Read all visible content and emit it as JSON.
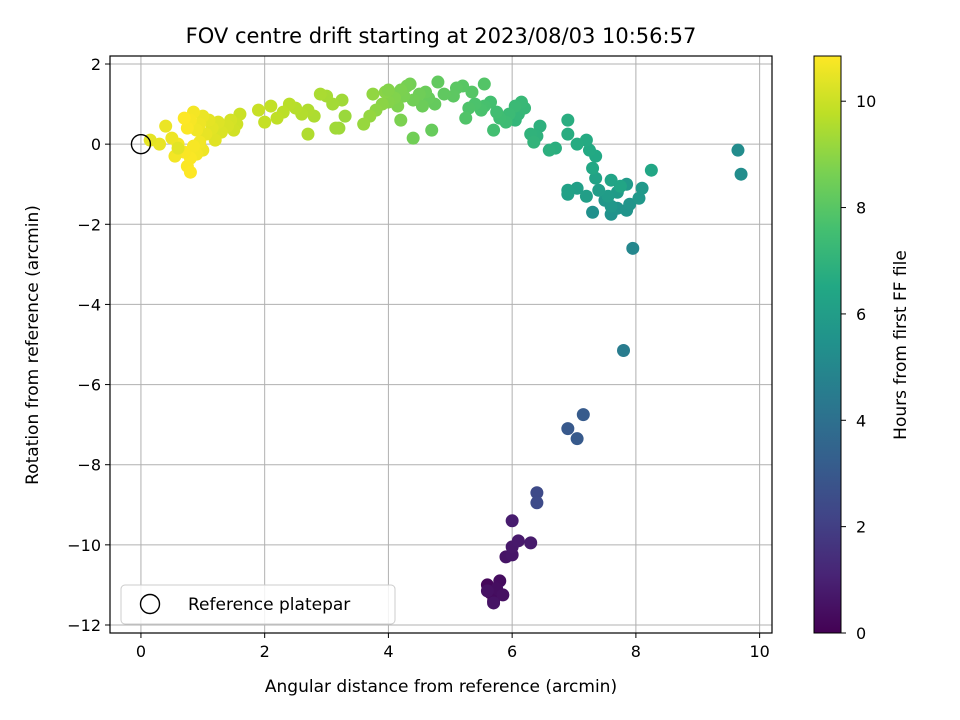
{
  "chart_data": {
    "type": "scatter",
    "title": "FOV centre drift starting at 2023/08/03 10:56:57",
    "xlabel": "Angular distance from reference (arcmin)",
    "ylabel": "Rotation from reference (arcmin)",
    "xlim": [
      -0.5,
      10.2
    ],
    "ylim": [
      -12.2,
      2.2
    ],
    "xticks": [
      0,
      2,
      4,
      6,
      8,
      10
    ],
    "yticks": [
      2,
      0,
      -2,
      -4,
      -6,
      -8,
      -10,
      -12
    ],
    "grid": true,
    "colorbar": {
      "label": "Hours from first FF file",
      "range": [
        0,
        10.85
      ],
      "ticks": [
        0,
        2,
        4,
        6,
        8,
        10
      ],
      "colormap": "viridis"
    },
    "legend": {
      "position": "lower-left",
      "entries": [
        "Reference platepar"
      ]
    },
    "reference_point": {
      "x": 0,
      "y": 0
    },
    "series": [
      {
        "points": [
          {
            "x": 5.6,
            "y": -11.0,
            "h": 0.2
          },
          {
            "x": 5.65,
            "y": -11.2,
            "h": 0.25
          },
          {
            "x": 5.7,
            "y": -11.4,
            "h": 0.3
          },
          {
            "x": 5.8,
            "y": -10.9,
            "h": 0.35
          },
          {
            "x": 5.75,
            "y": -11.1,
            "h": 0.4
          },
          {
            "x": 5.85,
            "y": -11.25,
            "h": 0.45
          },
          {
            "x": 5.6,
            "y": -11.15,
            "h": 0.5
          },
          {
            "x": 5.7,
            "y": -11.45,
            "h": 0.55
          },
          {
            "x": 5.9,
            "y": -10.3,
            "h": 0.6
          },
          {
            "x": 6.0,
            "y": -10.25,
            "h": 0.65
          },
          {
            "x": 6.0,
            "y": -10.05,
            "h": 0.7
          },
          {
            "x": 6.1,
            "y": -9.9,
            "h": 0.75
          },
          {
            "x": 6.3,
            "y": -9.95,
            "h": 0.8
          },
          {
            "x": 6.0,
            "y": -9.4,
            "h": 0.85
          },
          {
            "x": 6.4,
            "y": -8.7,
            "h": 2.4
          },
          {
            "x": 6.4,
            "y": -8.95,
            "h": 2.45
          },
          {
            "x": 6.9,
            "y": -7.1,
            "h": 3.0
          },
          {
            "x": 7.05,
            "y": -7.35,
            "h": 3.05
          },
          {
            "x": 7.15,
            "y": -6.75,
            "h": 3.1
          },
          {
            "x": 7.8,
            "y": -5.15,
            "h": 4.5
          },
          {
            "x": 7.95,
            "y": -2.6,
            "h": 5.0
          },
          {
            "x": 9.65,
            "y": -0.15,
            "h": 5.2
          },
          {
            "x": 9.7,
            "y": -0.75,
            "h": 5.25
          },
          {
            "x": 7.3,
            "y": -1.7,
            "h": 5.4
          },
          {
            "x": 7.6,
            "y": -1.75,
            "h": 5.45
          },
          {
            "x": 7.7,
            "y": -1.6,
            "h": 5.5
          },
          {
            "x": 7.85,
            "y": -1.65,
            "h": 5.55
          },
          {
            "x": 7.9,
            "y": -1.5,
            "h": 5.6
          },
          {
            "x": 7.5,
            "y": -1.4,
            "h": 5.65
          },
          {
            "x": 7.6,
            "y": -1.55,
            "h": 5.7
          },
          {
            "x": 8.05,
            "y": -1.35,
            "h": 5.75
          },
          {
            "x": 8.1,
            "y": -1.1,
            "h": 5.8
          },
          {
            "x": 7.85,
            "y": -1.0,
            "h": 5.85
          },
          {
            "x": 7.7,
            "y": -1.2,
            "h": 5.9
          },
          {
            "x": 7.55,
            "y": -1.3,
            "h": 5.95
          },
          {
            "x": 7.4,
            "y": -1.15,
            "h": 6.0
          },
          {
            "x": 7.2,
            "y": -1.3,
            "h": 6.05
          },
          {
            "x": 7.05,
            "y": -1.1,
            "h": 6.1
          },
          {
            "x": 6.9,
            "y": -1.25,
            "h": 6.15
          },
          {
            "x": 6.9,
            "y": -1.15,
            "h": 6.2
          },
          {
            "x": 7.35,
            "y": -0.85,
            "h": 6.25
          },
          {
            "x": 7.6,
            "y": -0.9,
            "h": 6.3
          },
          {
            "x": 7.75,
            "y": -1.05,
            "h": 6.35
          },
          {
            "x": 8.25,
            "y": -0.65,
            "h": 6.4
          },
          {
            "x": 7.3,
            "y": -0.6,
            "h": 6.45
          },
          {
            "x": 7.35,
            "y": -0.3,
            "h": 6.5
          },
          {
            "x": 7.25,
            "y": -0.15,
            "h": 6.55
          },
          {
            "x": 7.2,
            "y": 0.1,
            "h": 6.6
          },
          {
            "x": 7.05,
            "y": 0.0,
            "h": 6.65
          },
          {
            "x": 6.9,
            "y": 0.25,
            "h": 6.7
          },
          {
            "x": 6.9,
            "y": 0.6,
            "h": 6.75
          },
          {
            "x": 6.7,
            "y": -0.1,
            "h": 6.8
          },
          {
            "x": 6.6,
            "y": -0.15,
            "h": 6.85
          },
          {
            "x": 6.45,
            "y": 0.45,
            "h": 6.9
          },
          {
            "x": 6.4,
            "y": 0.2,
            "h": 6.95
          },
          {
            "x": 6.3,
            "y": 0.25,
            "h": 7.0
          },
          {
            "x": 6.35,
            "y": 0.05,
            "h": 7.05
          },
          {
            "x": 6.05,
            "y": 0.6,
            "h": 7.1
          },
          {
            "x": 6.1,
            "y": 0.75,
            "h": 7.15
          },
          {
            "x": 6.2,
            "y": 0.9,
            "h": 7.2
          },
          {
            "x": 6.15,
            "y": 1.05,
            "h": 7.25
          },
          {
            "x": 6.05,
            "y": 0.95,
            "h": 7.3
          },
          {
            "x": 5.95,
            "y": 0.75,
            "h": 7.35
          },
          {
            "x": 5.9,
            "y": 0.55,
            "h": 7.4
          },
          {
            "x": 5.8,
            "y": 0.65,
            "h": 7.45
          },
          {
            "x": 5.75,
            "y": 0.8,
            "h": 7.5
          },
          {
            "x": 5.7,
            "y": 0.35,
            "h": 7.55
          },
          {
            "x": 5.65,
            "y": 1.05,
            "h": 7.6
          },
          {
            "x": 5.55,
            "y": 0.95,
            "h": 7.65
          },
          {
            "x": 5.5,
            "y": 0.85,
            "h": 7.7
          },
          {
            "x": 5.4,
            "y": 1.0,
            "h": 7.75
          },
          {
            "x": 5.3,
            "y": 0.9,
            "h": 7.8
          },
          {
            "x": 5.25,
            "y": 0.65,
            "h": 7.85
          },
          {
            "x": 5.55,
            "y": 1.5,
            "h": 7.9
          },
          {
            "x": 5.35,
            "y": 1.3,
            "h": 7.95
          },
          {
            "x": 5.2,
            "y": 1.45,
            "h": 8.0
          },
          {
            "x": 5.1,
            "y": 1.4,
            "h": 8.05
          },
          {
            "x": 5.05,
            "y": 1.2,
            "h": 8.1
          },
          {
            "x": 4.9,
            "y": 1.25,
            "h": 8.15
          },
          {
            "x": 4.8,
            "y": 1.55,
            "h": 8.2
          },
          {
            "x": 4.75,
            "y": 1.0,
            "h": 8.25
          },
          {
            "x": 4.65,
            "y": 1.15,
            "h": 8.3
          },
          {
            "x": 4.6,
            "y": 1.3,
            "h": 8.35
          },
          {
            "x": 4.55,
            "y": 0.95,
            "h": 8.4
          },
          {
            "x": 4.5,
            "y": 1.25,
            "h": 8.45
          },
          {
            "x": 4.4,
            "y": 1.1,
            "h": 8.5
          },
          {
            "x": 4.35,
            "y": 1.5,
            "h": 8.55
          },
          {
            "x": 4.3,
            "y": 1.45,
            "h": 8.6
          },
          {
            "x": 4.25,
            "y": 1.2,
            "h": 8.65
          },
          {
            "x": 4.2,
            "y": 1.35,
            "h": 8.7
          },
          {
            "x": 4.15,
            "y": 0.95,
            "h": 8.75
          },
          {
            "x": 4.1,
            "y": 1.15,
            "h": 8.8
          },
          {
            "x": 4.0,
            "y": 1.05,
            "h": 8.85
          },
          {
            "x": 3.95,
            "y": 1.3,
            "h": 8.9
          },
          {
            "x": 3.9,
            "y": 1.0,
            "h": 8.95
          },
          {
            "x": 3.8,
            "y": 0.85,
            "h": 9.0
          },
          {
            "x": 3.75,
            "y": 1.25,
            "h": 9.05
          },
          {
            "x": 3.7,
            "y": 0.7,
            "h": 9.1
          },
          {
            "x": 4.2,
            "y": 0.6,
            "h": 8.7
          },
          {
            "x": 4.7,
            "y": 0.35,
            "h": 8.3
          },
          {
            "x": 4.4,
            "y": 0.15,
            "h": 8.5
          },
          {
            "x": 4.0,
            "y": 1.35,
            "h": 8.85
          },
          {
            "x": 3.6,
            "y": 0.5,
            "h": 9.15
          },
          {
            "x": 3.3,
            "y": 0.7,
            "h": 9.2
          },
          {
            "x": 3.2,
            "y": 0.4,
            "h": 9.25
          },
          {
            "x": 3.25,
            "y": 1.1,
            "h": 9.3
          },
          {
            "x": 3.1,
            "y": 1.0,
            "h": 9.35
          },
          {
            "x": 3.0,
            "y": 1.2,
            "h": 9.4
          },
          {
            "x": 2.9,
            "y": 1.25,
            "h": 9.45
          },
          {
            "x": 2.8,
            "y": 0.7,
            "h": 9.5
          },
          {
            "x": 2.7,
            "y": 0.85,
            "h": 9.55
          },
          {
            "x": 2.6,
            "y": 0.75,
            "h": 9.6
          },
          {
            "x": 2.5,
            "y": 0.9,
            "h": 9.65
          },
          {
            "x": 2.4,
            "y": 1.0,
            "h": 9.7
          },
          {
            "x": 2.3,
            "y": 0.8,
            "h": 9.75
          },
          {
            "x": 2.2,
            "y": 0.65,
            "h": 9.8
          },
          {
            "x": 2.1,
            "y": 0.95,
            "h": 9.85
          },
          {
            "x": 2.0,
            "y": 0.55,
            "h": 9.9
          },
          {
            "x": 1.9,
            "y": 0.85,
            "h": 9.95
          },
          {
            "x": 2.7,
            "y": 0.25,
            "h": 9.55
          },
          {
            "x": 3.15,
            "y": 0.4,
            "h": 9.3
          },
          {
            "x": 1.6,
            "y": 0.75,
            "h": 10.0
          },
          {
            "x": 1.55,
            "y": 0.5,
            "h": 10.05
          },
          {
            "x": 1.5,
            "y": 0.35,
            "h": 10.1
          },
          {
            "x": 1.45,
            "y": 0.6,
            "h": 10.15
          },
          {
            "x": 1.4,
            "y": 0.45,
            "h": 10.2
          },
          {
            "x": 1.3,
            "y": 0.3,
            "h": 10.25
          },
          {
            "x": 1.25,
            "y": 0.55,
            "h": 10.3
          },
          {
            "x": 1.2,
            "y": 0.1,
            "h": 10.35
          },
          {
            "x": 1.15,
            "y": 0.4,
            "h": 10.4
          },
          {
            "x": 1.1,
            "y": 0.6,
            "h": 10.45
          },
          {
            "x": 1.05,
            "y": 0.25,
            "h": 10.5
          },
          {
            "x": 1.0,
            "y": 0.7,
            "h": 10.55
          },
          {
            "x": 0.95,
            "y": 0.5,
            "h": 10.6
          },
          {
            "x": 0.9,
            "y": 0.35,
            "h": 10.65
          },
          {
            "x": 0.85,
            "y": 0.8,
            "h": 10.7
          },
          {
            "x": 0.8,
            "y": 0.6,
            "h": 10.75
          },
          {
            "x": 0.75,
            "y": 0.4,
            "h": 10.8
          },
          {
            "x": 0.7,
            "y": 0.65,
            "h": 10.85
          },
          {
            "x": 1.0,
            "y": -0.15,
            "h": 10.6
          },
          {
            "x": 0.95,
            "y": 0.05,
            "h": 10.65
          },
          {
            "x": 0.9,
            "y": -0.25,
            "h": 10.7
          },
          {
            "x": 0.85,
            "y": -0.05,
            "h": 10.75
          },
          {
            "x": 0.8,
            "y": -0.35,
            "h": 10.8
          },
          {
            "x": 0.75,
            "y": -0.55,
            "h": 10.82
          },
          {
            "x": 0.8,
            "y": -0.7,
            "h": 10.85
          },
          {
            "x": 0.7,
            "y": -0.2,
            "h": 10.78
          },
          {
            "x": 0.6,
            "y": 0.0,
            "h": 10.72
          },
          {
            "x": 0.55,
            "y": -0.3,
            "h": 10.68
          },
          {
            "x": 0.5,
            "y": 0.15,
            "h": 10.6
          },
          {
            "x": 0.4,
            "y": 0.45,
            "h": 10.55
          },
          {
            "x": 0.3,
            "y": 0.0,
            "h": 10.5
          },
          {
            "x": 0.15,
            "y": 0.1,
            "h": 10.45
          },
          {
            "x": 0.6,
            "y": -0.1,
            "h": 10.4
          }
        ]
      }
    ]
  }
}
